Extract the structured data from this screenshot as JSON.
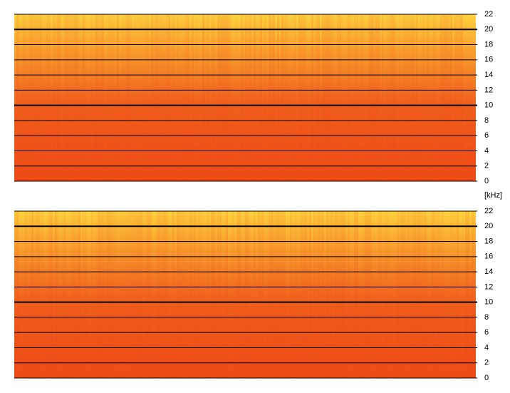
{
  "chart_data": [
    {
      "type": "spectrogram",
      "ylabel": "[kHz]",
      "ylim": [
        0,
        22
      ],
      "yticks": [
        0,
        2,
        4,
        6,
        8,
        10,
        12,
        14,
        16,
        18,
        20,
        22
      ],
      "colors": [
        "#ee4a16",
        "#ffd53e"
      ],
      "grid": true
    },
    {
      "type": "spectrogram",
      "ylim": [
        0,
        22
      ],
      "yticks": [
        0,
        2,
        4,
        6,
        8,
        10,
        12,
        14,
        16,
        18,
        20,
        22
      ],
      "colors": [
        "#ee4a16",
        "#ffd53e"
      ],
      "grid": true
    }
  ]
}
